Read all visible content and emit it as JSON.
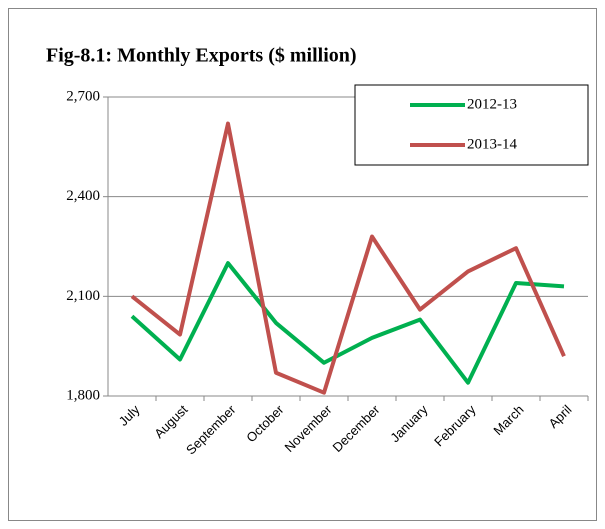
{
  "chart_data": {
    "type": "line",
    "title": "Fig-8.1: Monthly Exports ($ million)",
    "categories": [
      "July",
      "August",
      "September",
      "October",
      "November",
      "December",
      "January",
      "February",
      "March",
      "April"
    ],
    "series": [
      {
        "name": "2012-13",
        "color": "#00b050",
        "values": [
          2040,
          1910,
          2200,
          2020,
          1900,
          1975,
          2030,
          1840,
          2140,
          2130
        ]
      },
      {
        "name": "2013-14",
        "color": "#c0504d",
        "values": [
          2100,
          1985,
          2620,
          1870,
          1810,
          2280,
          2060,
          2175,
          2245,
          1920
        ]
      }
    ],
    "ylim": [
      1800,
      2700
    ],
    "yticks": [
      {
        "value": 1800,
        "label": "1,800"
      },
      {
        "value": 2100,
        "label": "2,100"
      },
      {
        "value": 2400,
        "label": "2,400"
      },
      {
        "value": 2700,
        "label": "2,700"
      }
    ],
    "grid": true,
    "legend": "top-right"
  }
}
